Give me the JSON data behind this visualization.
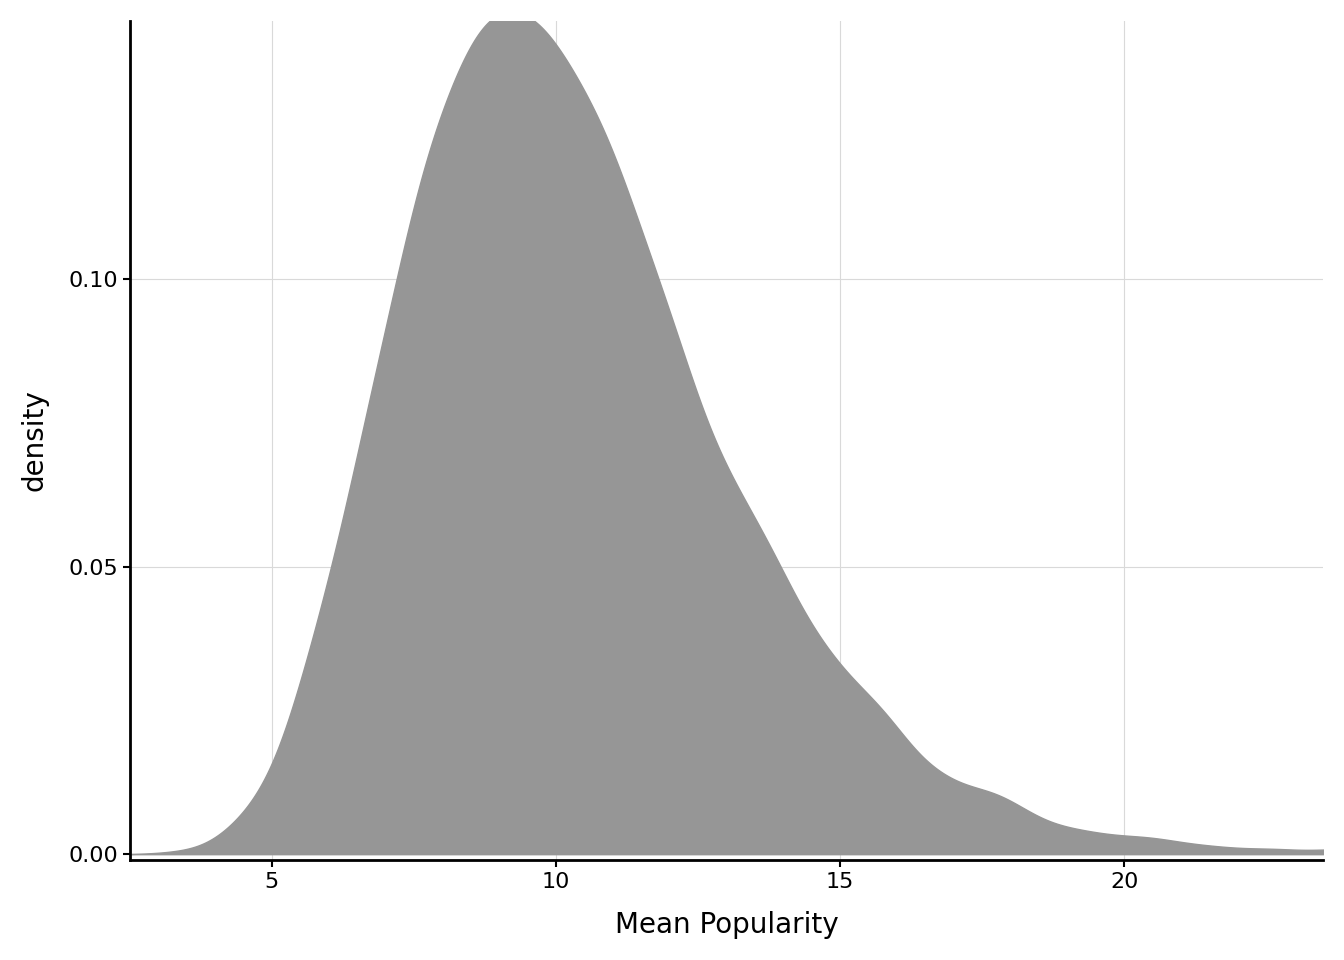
{
  "xlabel": "Mean Popularity",
  "ylabel": "density",
  "fill_color": "#969696",
  "fill_alpha": 1.0,
  "background_color": "#ffffff",
  "panel_background": "#ffffff",
  "grid_color": "#d9d9d9",
  "xlim": [
    2.5,
    23.5
  ],
  "ylim": [
    -0.001,
    0.145
  ],
  "xticks": [
    5,
    10,
    15,
    20
  ],
  "yticks": [
    0.0,
    0.05,
    0.1
  ],
  "xlabel_fontsize": 20,
  "ylabel_fontsize": 20,
  "tick_fontsize": 16,
  "sigma": 0.28,
  "mode": 9.2,
  "seed": 42,
  "n_samples": 10000
}
